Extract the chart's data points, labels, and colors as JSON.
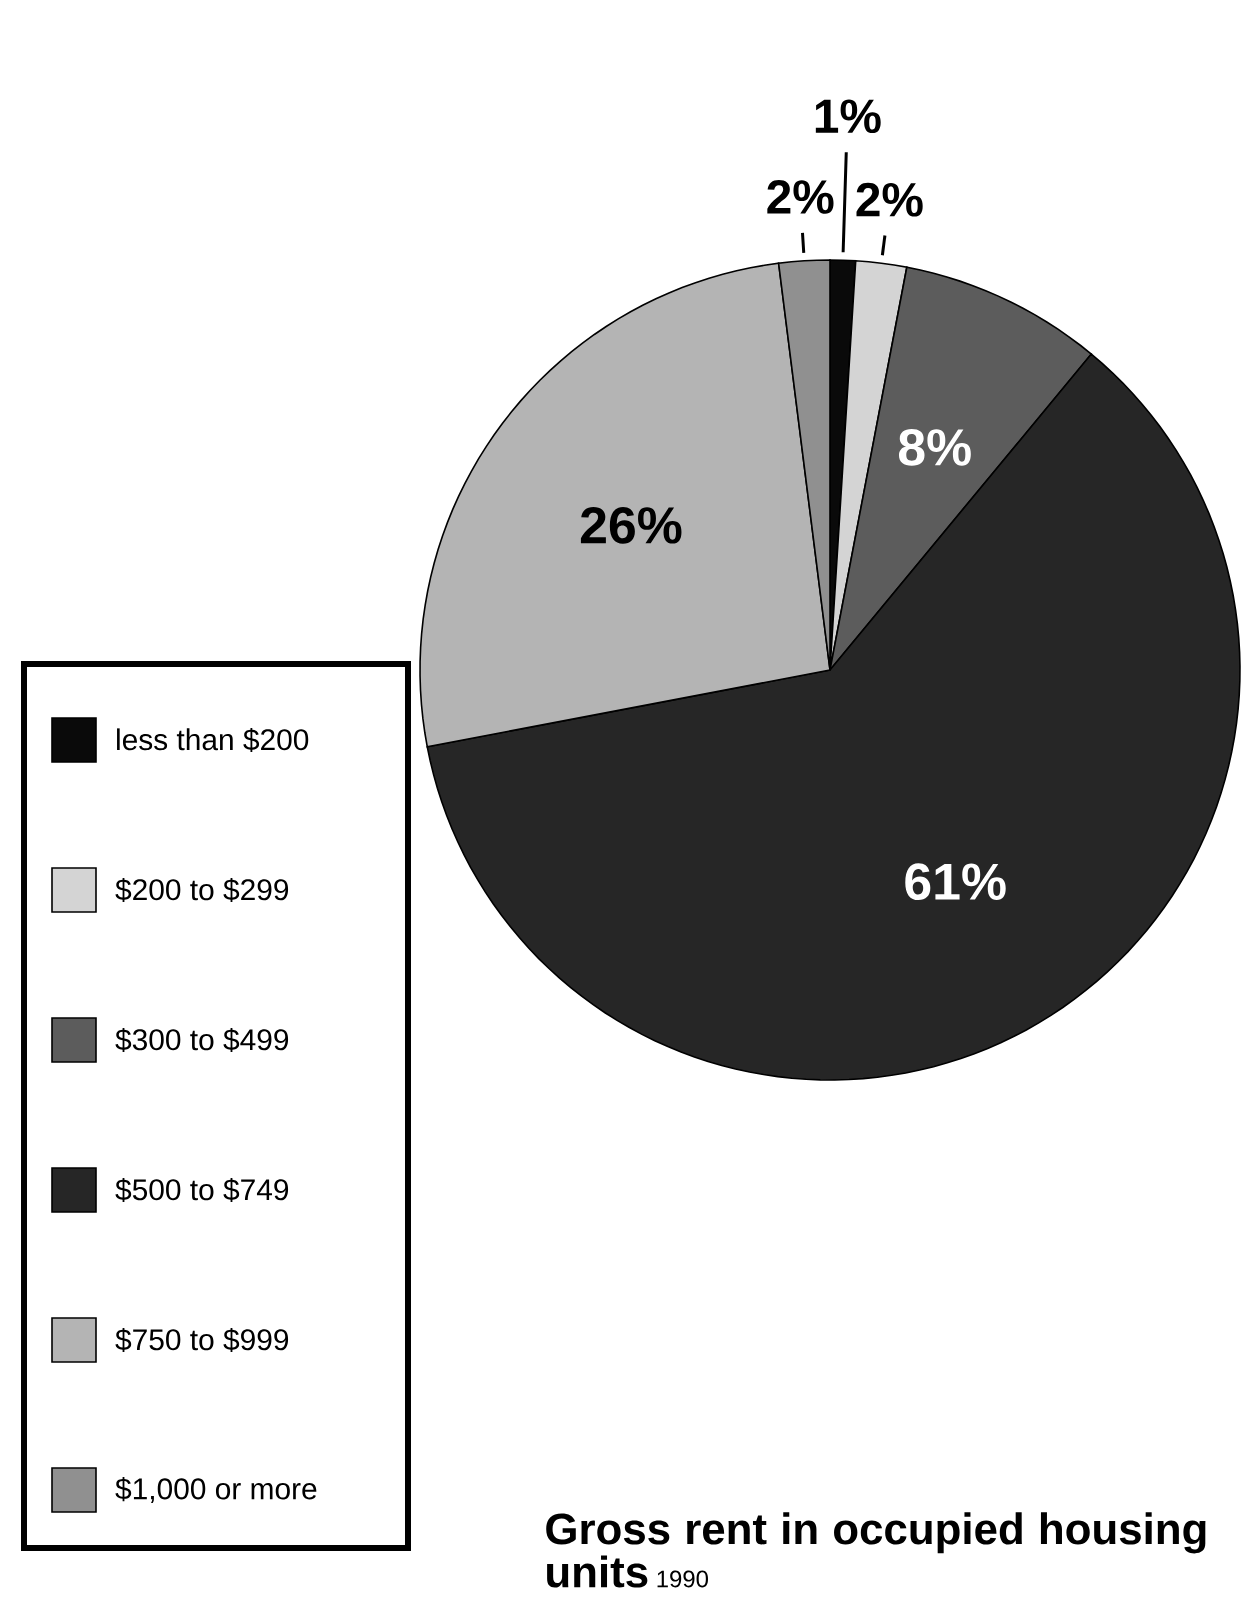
{
  "chart_data": {
    "type": "pie",
    "title": "Gross rent in occupied housing units",
    "subtitle": "1990",
    "categories": [
      "less than $200",
      "$200 to $299",
      "$300 to $499",
      "$500 to $749",
      "$750 to $999",
      "$1,000 or more"
    ],
    "values": [
      1,
      2,
      8,
      61,
      26,
      2
    ],
    "value_labels": [
      "1%",
      "2%",
      "8%",
      "61%",
      "26%",
      "2%"
    ],
    "colors": [
      "#0a0a0a",
      "#d4d4d4",
      "#5c5c5c",
      "#262626",
      "#b4b4b4",
      "#909090"
    ],
    "legend": "bottom left"
  }
}
